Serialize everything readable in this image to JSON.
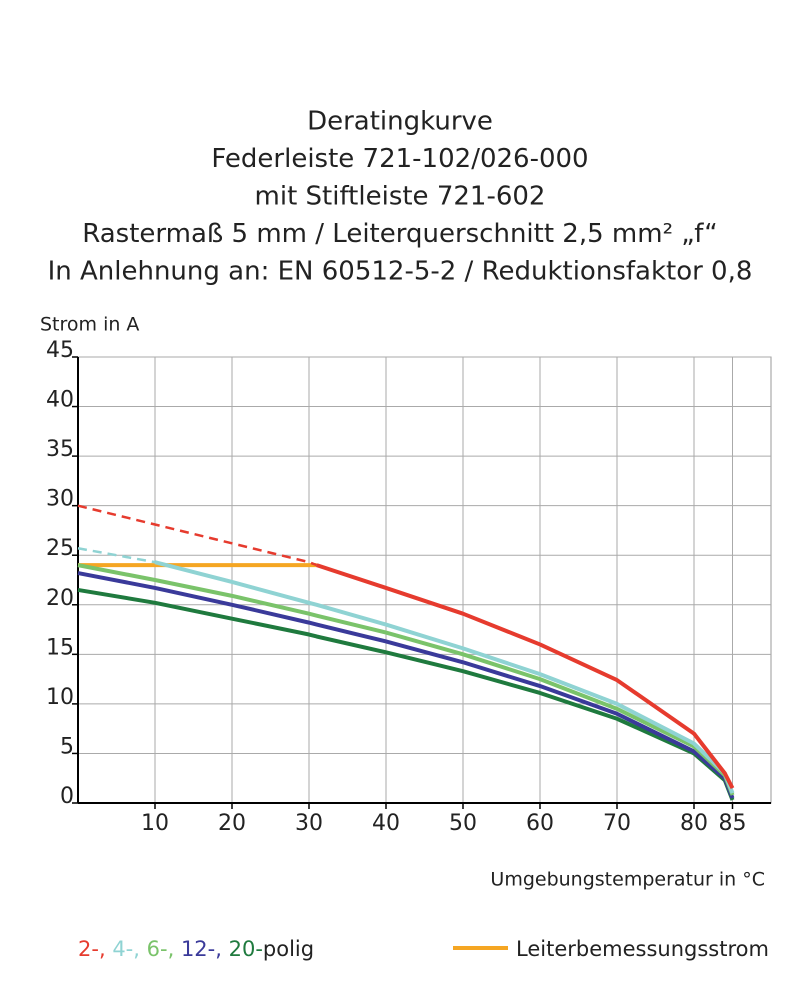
{
  "chart_data": {
    "type": "line",
    "title_lines": [
      "Deratingkurve",
      "Federleiste 721-102/026-000",
      "mit Stiftleiste 721-602",
      "Rastermaß 5 mm / Leiterquerschnitt 2,5 mm² „f“",
      "In Anlehnung an: EN 60512-5-2 / Reduktionsfaktor 0,8"
    ],
    "y_label": "Strom in A",
    "x_label": "Umgebungstemperatur in °C",
    "x": [
      0,
      10,
      20,
      30,
      31,
      40,
      50,
      60,
      70,
      80,
      84,
      85
    ],
    "series": [
      {
        "name": "Leiterbemessungsstrom",
        "color": "#f5a623",
        "values": [
          24,
          24,
          24,
          24,
          24,
          null,
          null,
          null,
          null,
          null,
          null,
          null
        ]
      },
      {
        "name": "20-",
        "color": "#1f7a3e",
        "values": [
          21.5,
          20.2,
          18.6,
          17,
          16.8,
          15.2,
          13.3,
          11.1,
          8.5,
          5,
          2.3,
          0.3
        ]
      },
      {
        "name": "12-",
        "color": "#3a3a9a",
        "values": [
          23.2,
          21.7,
          20,
          18.2,
          18,
          16.3,
          14.2,
          11.8,
          9,
          5.2,
          2.5,
          0.5
        ]
      },
      {
        "name": "6-",
        "color": "#7ac36a",
        "values": [
          24,
          22.5,
          20.9,
          19.1,
          18.9,
          17.2,
          15,
          12.5,
          9.5,
          5.7,
          2.8,
          0.8
        ]
      },
      {
        "name": "4-",
        "color": "#8fd3d3",
        "dashed_until": 10,
        "values": [
          25.7,
          24.3,
          22.3,
          20.2,
          20,
          18,
          15.6,
          13,
          10,
          6,
          3,
          1
        ]
      },
      {
        "name": "2-",
        "color": "#e63b2e",
        "dashed_until": 31,
        "values": [
          30,
          28.1,
          26.2,
          24.3,
          24,
          21.7,
          19.1,
          16,
          12.4,
          7,
          3,
          1.5
        ]
      }
    ],
    "legend_order": [
      5,
      4,
      3,
      2,
      1
    ],
    "legend_separator": ", ",
    "legend_suffix": "polig",
    "xlim": [
      0,
      90
    ],
    "ylim": [
      0,
      45
    ],
    "xticks": [
      10,
      20,
      30,
      40,
      50,
      60,
      70,
      80,
      85
    ],
    "yticks": [
      0,
      5,
      10,
      15,
      20,
      25,
      30,
      35,
      40,
      45
    ],
    "grid": true
  }
}
